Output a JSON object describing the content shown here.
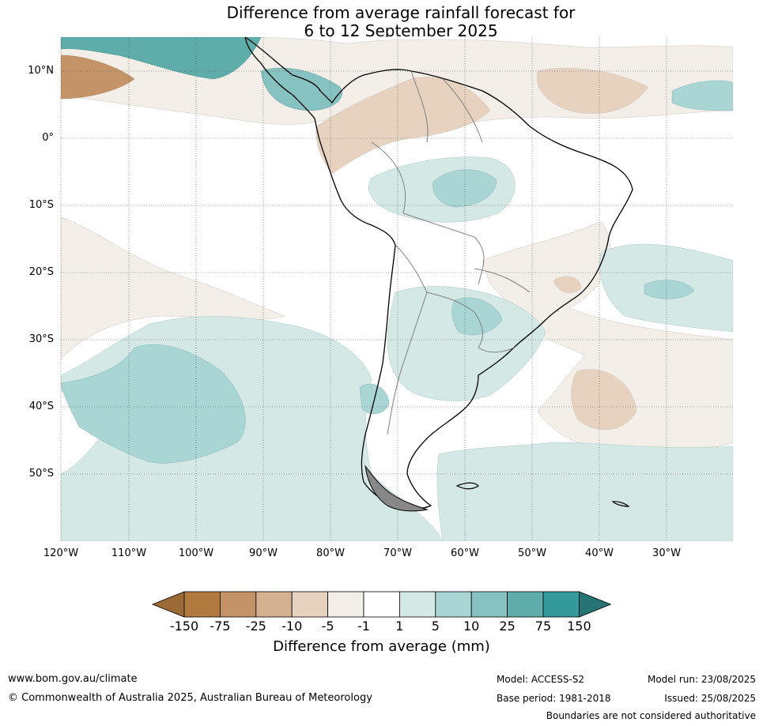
{
  "title": {
    "line1": "Difference from average rainfall forecast for",
    "line2": "6 to 12 September 2025"
  },
  "map": {
    "lat_labels": [
      "10°N",
      "0°",
      "10°S",
      "20°S",
      "30°S",
      "40°S",
      "50°S"
    ],
    "lon_labels": [
      "120°W",
      "110°W",
      "100°W",
      "90°W",
      "80°W",
      "70°W",
      "60°W",
      "50°W",
      "40°W",
      "30°W"
    ],
    "region": "South America and surrounding oceans",
    "colors": {
      "land_ocean_base": "#ffffff",
      "coast": "#000000",
      "borders": "#808080",
      "grid": "#555555"
    }
  },
  "legend": {
    "title": "Difference from average (mm)",
    "ticks": [
      "-150",
      "-75",
      "-25",
      "-10",
      "-5",
      "-1",
      "1",
      "5",
      "10",
      "25",
      "75",
      "150"
    ],
    "colors": [
      "#9c6a37",
      "#b07a3f",
      "#c49468",
      "#d4b291",
      "#e6d2bf",
      "#f3eee8",
      "#ffffff",
      "#d4e8e6",
      "#a9d5d4",
      "#86c2c1",
      "#5eadab",
      "#34999a",
      "#267474"
    ]
  },
  "footer": {
    "website": "www.bom.gov.au/climate",
    "copyright": "© Commonwealth of Australia 2025, Australian Bureau of Meteorology",
    "model": "Model: ACCESS-S2",
    "base_period": "Base period: 1981-2018",
    "model_run": "Model run: 23/08/2025",
    "issued": "Issued: 25/08/2025",
    "disclaimer": "Boundaries are not considered authoritative"
  }
}
